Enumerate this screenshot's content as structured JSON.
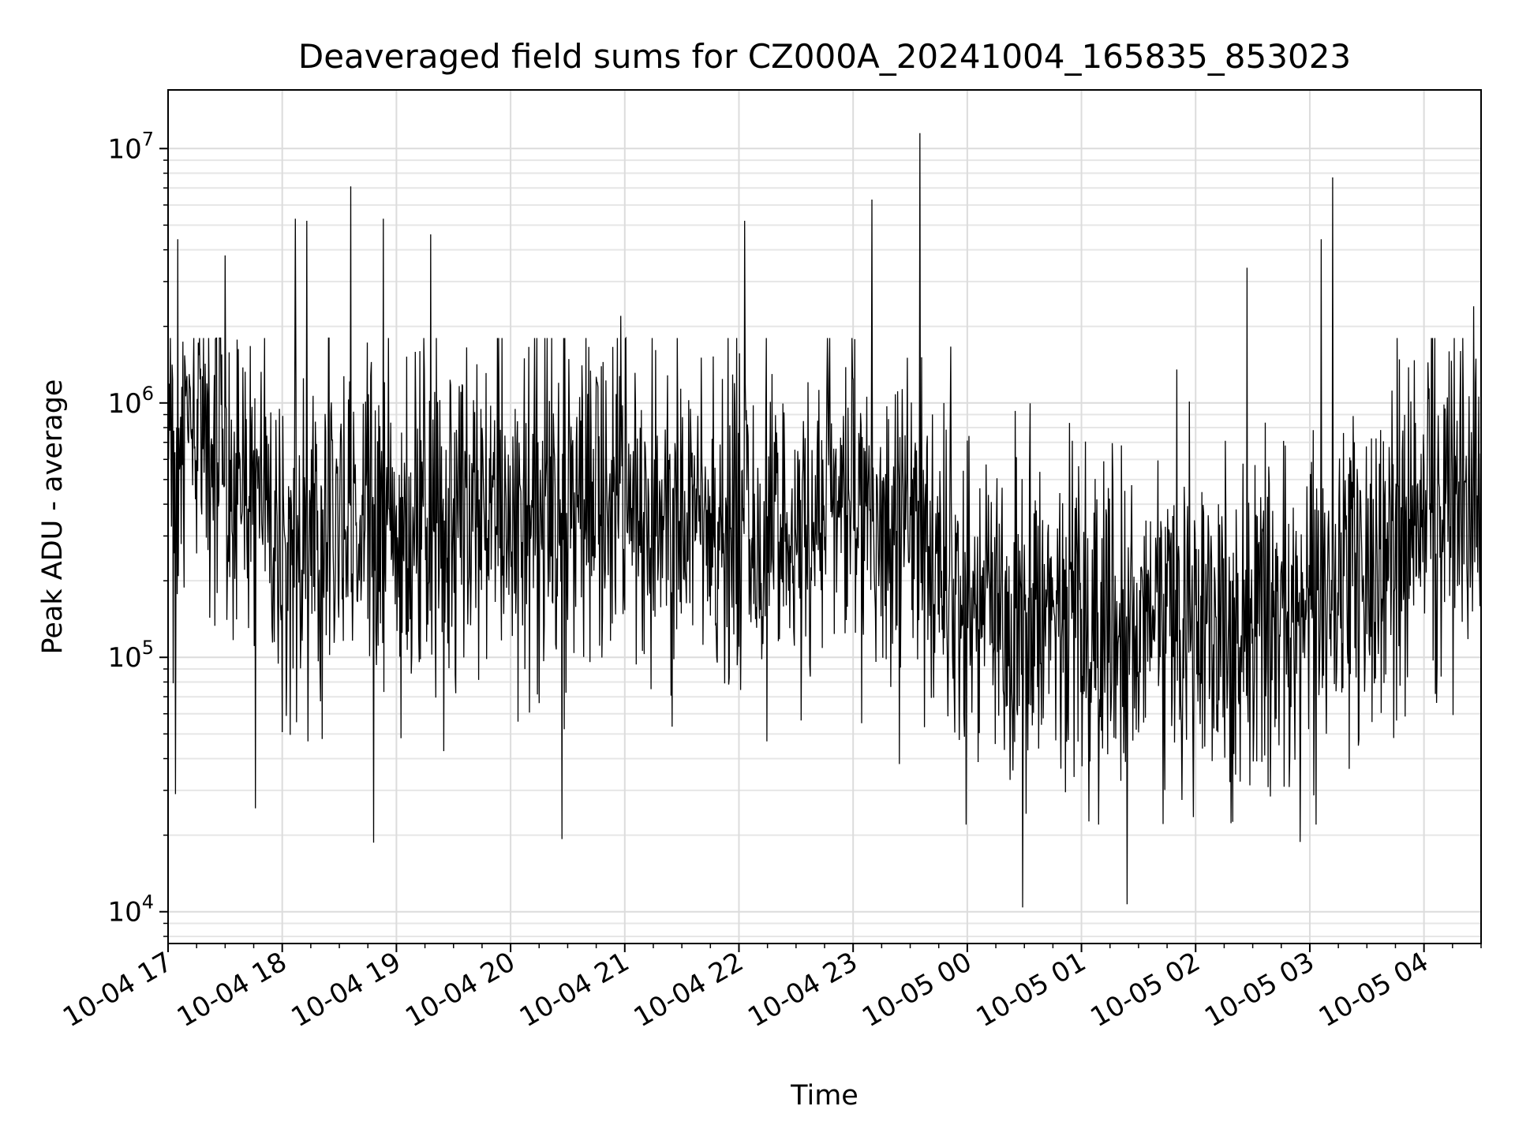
{
  "chart_data": {
    "type": "line",
    "title": "Deaveraged field sums for CZ000A_20241004_165835_853023",
    "xlabel": "Time",
    "ylabel": "Peak ADU - average",
    "yscale": "log",
    "ylim": [
      7500,
      17000000
    ],
    "xlim": [
      "2024-10-04 17:00",
      "2024-10-05 04:30"
    ],
    "grid": true,
    "line_color": "#000000",
    "x_ticks": [
      {
        "t": "2024-10-04 17:00",
        "label": "10-04 17"
      },
      {
        "t": "2024-10-04 18:00",
        "label": "10-04 18"
      },
      {
        "t": "2024-10-04 19:00",
        "label": "10-04 19"
      },
      {
        "t": "2024-10-04 20:00",
        "label": "10-04 20"
      },
      {
        "t": "2024-10-04 21:00",
        "label": "10-04 21"
      },
      {
        "t": "2024-10-04 22:00",
        "label": "10-04 22"
      },
      {
        "t": "2024-10-04 23:00",
        "label": "10-04 23"
      },
      {
        "t": "2024-10-05 00:00",
        "label": "10-05 00"
      },
      {
        "t": "2024-10-05 01:00",
        "label": "10-05 01"
      },
      {
        "t": "2024-10-05 02:00",
        "label": "10-05 02"
      },
      {
        "t": "2024-10-05 03:00",
        "label": "10-05 03"
      },
      {
        "t": "2024-10-05 04:00",
        "label": "10-05 04"
      }
    ],
    "y_ticks": [
      {
        "value": 10000,
        "base": "10",
        "exp": "4"
      },
      {
        "value": 100000,
        "base": "10",
        "exp": "5"
      },
      {
        "value": 1000000,
        "base": "10",
        "exp": "6"
      },
      {
        "value": 10000000,
        "base": "10",
        "exp": "7"
      }
    ],
    "baseline_profile": [
      {
        "t": "2024-10-04 17:00",
        "value": 700000
      },
      {
        "t": "2024-10-04 17:30",
        "value": 650000
      },
      {
        "t": "2024-10-04 18:00",
        "value": 300000
      },
      {
        "t": "2024-10-04 19:00",
        "value": 320000
      },
      {
        "t": "2024-10-04 20:00",
        "value": 380000
      },
      {
        "t": "2024-10-04 21:00",
        "value": 420000
      },
      {
        "t": "2024-10-04 22:00",
        "value": 300000
      },
      {
        "t": "2024-10-04 23:00",
        "value": 420000
      },
      {
        "t": "2024-10-05 00:00",
        "value": 180000
      },
      {
        "t": "2024-10-05 01:00",
        "value": 110000
      },
      {
        "t": "2024-10-05 02:00",
        "value": 150000
      },
      {
        "t": "2024-10-05 03:00",
        "value": 150000
      },
      {
        "t": "2024-10-05 04:00",
        "value": 350000
      },
      {
        "t": "2024-10-05 04:30",
        "value": 400000
      }
    ],
    "peaks": [
      {
        "t": "2024-10-04 17:05",
        "value": 4400000
      },
      {
        "t": "2024-10-04 17:30",
        "value": 3800000
      },
      {
        "t": "2024-10-04 18:07",
        "value": 5300000
      },
      {
        "t": "2024-10-04 18:13",
        "value": 5200000
      },
      {
        "t": "2024-10-04 18:36",
        "value": 7100000
      },
      {
        "t": "2024-10-04 18:53",
        "value": 5300000
      },
      {
        "t": "2024-10-04 19:18",
        "value": 4600000
      },
      {
        "t": "2024-10-04 20:58",
        "value": 2200000
      },
      {
        "t": "2024-10-04 22:03",
        "value": 5200000
      },
      {
        "t": "2024-10-04 23:10",
        "value": 6300000
      },
      {
        "t": "2024-10-04 23:35",
        "value": 11500000
      },
      {
        "t": "2024-10-05 02:27",
        "value": 3400000
      },
      {
        "t": "2024-10-05 03:06",
        "value": 4400000
      },
      {
        "t": "2024-10-05 03:12",
        "value": 7700000
      },
      {
        "t": "2024-10-05 04:26",
        "value": 2400000
      }
    ],
    "troughs": [
      {
        "t": "2024-10-04 17:04",
        "value": 29000
      },
      {
        "t": "2024-10-04 17:46",
        "value": 25500
      },
      {
        "t": "2024-10-04 18:48",
        "value": 18700
      },
      {
        "t": "2024-10-04 20:27",
        "value": 19300
      },
      {
        "t": "2024-10-05 00:29",
        "value": 10400
      },
      {
        "t": "2024-10-05 01:24",
        "value": 10700
      },
      {
        "t": "2024-10-05 02:55",
        "value": 18800
      }
    ]
  }
}
